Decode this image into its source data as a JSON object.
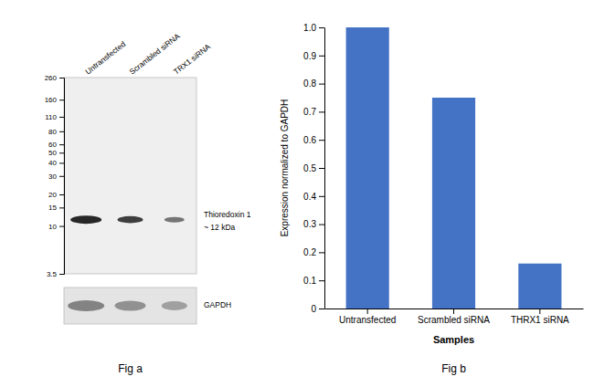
{
  "chart_data": [
    {
      "type": "blot",
      "title": "Fig a",
      "categories": [
        "Untransfected",
        "Scrambled siRNA",
        "TRX1 siRNA"
      ],
      "values": [
        11.5,
        11.5,
        11.5
      ],
      "color": "#111111",
      "log": "y",
      "ylim": [
        3.5,
        260
      ],
      "yticks": [
        260,
        160,
        110,
        80,
        60,
        50,
        40,
        30,
        20,
        15,
        10,
        3.5
      ],
      "annotations": [
        "Thioredoxin 1",
        "~ 12 kDa",
        "GAPDH"
      ]
    },
    {
      "type": "bar",
      "title": "Fig b",
      "categories": [
        "Untransfected",
        "Scrambled siRNA",
        "THRX1 siRNA"
      ],
      "values": [
        1.0,
        0.75,
        0.16
      ],
      "color": "#4472c4",
      "xlabel": "Samples",
      "ylabel": "Expression normalized to GAPDH",
      "ylim": [
        0,
        1.0
      ],
      "yticks": [
        0,
        0.1,
        0.2,
        0.3,
        0.4,
        0.5,
        0.6,
        0.7,
        0.8,
        0.9,
        {
          "value": 1.0,
          "label": "1.0"
        }
      ]
    }
  ]
}
